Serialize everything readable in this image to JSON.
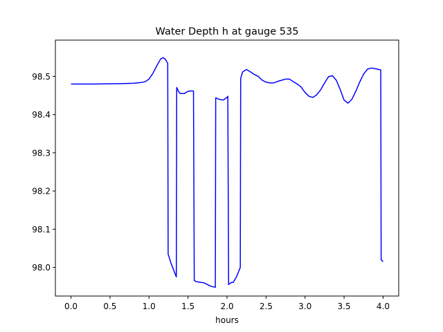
{
  "chart_data": {
    "type": "line",
    "title": "Water Depth h at gauge 535",
    "xlabel": "hours",
    "ylabel": "",
    "xlim": [
      -0.2,
      4.2
    ],
    "ylim": [
      97.925,
      98.595
    ],
    "xticks": [
      0.0,
      0.5,
      1.0,
      1.5,
      2.0,
      2.5,
      3.0,
      3.5,
      4.0
    ],
    "xtick_labels": [
      "0.0",
      "0.5",
      "1.0",
      "1.5",
      "2.0",
      "2.5",
      "3.0",
      "3.5",
      "4.0"
    ],
    "yticks": [
      98.0,
      98.1,
      98.2,
      98.3,
      98.4,
      98.5
    ],
    "ytick_labels": [
      "98.0",
      "98.1",
      "98.2",
      "98.3",
      "98.4",
      "98.5"
    ],
    "grid": false,
    "colors": {
      "line": "#0000ff",
      "axes": "#000000",
      "background": "#ffffff"
    },
    "series": [
      {
        "color": "#0000ff",
        "x": [
          0.0,
          0.3,
          0.6,
          0.8,
          0.9,
          0.95,
          1.0,
          1.05,
          1.1,
          1.15,
          1.18,
          1.21,
          1.24,
          1.245,
          1.28,
          1.35,
          1.355,
          1.38,
          1.4,
          1.45,
          1.5,
          1.54,
          1.56,
          1.57,
          1.58,
          1.6,
          1.65,
          1.7,
          1.75,
          1.8,
          1.85,
          1.855,
          1.9,
          1.95,
          2.0,
          2.01,
          2.02,
          2.05,
          2.08,
          2.12,
          2.15,
          2.17,
          2.175,
          2.2,
          2.25,
          2.3,
          2.35,
          2.4,
          2.45,
          2.5,
          2.55,
          2.6,
          2.65,
          2.7,
          2.75,
          2.8,
          2.85,
          2.9,
          2.95,
          3.0,
          3.05,
          3.1,
          3.15,
          3.2,
          3.25,
          3.3,
          3.35,
          3.4,
          3.45,
          3.5,
          3.55,
          3.6,
          3.65,
          3.7,
          3.75,
          3.8,
          3.85,
          3.9,
          3.95,
          3.97,
          3.975,
          4.0
        ],
        "y": [
          98.48,
          98.48,
          98.481,
          98.482,
          98.484,
          98.486,
          98.493,
          98.508,
          98.528,
          98.546,
          98.549,
          98.545,
          98.534,
          98.035,
          98.012,
          97.975,
          98.471,
          98.46,
          98.455,
          98.455,
          98.461,
          98.462,
          98.462,
          98.462,
          97.966,
          97.963,
          97.961,
          97.96,
          97.955,
          97.95,
          97.948,
          98.444,
          98.44,
          98.438,
          98.445,
          98.448,
          97.955,
          97.96,
          97.961,
          97.975,
          97.99,
          98.0,
          98.495,
          98.512,
          98.518,
          98.512,
          98.505,
          98.5,
          98.49,
          98.485,
          98.483,
          98.483,
          98.487,
          98.49,
          98.493,
          98.493,
          98.486,
          98.48,
          98.472,
          98.458,
          98.448,
          98.445,
          98.452,
          98.465,
          98.483,
          98.499,
          98.502,
          98.49,
          98.466,
          98.438,
          98.43,
          98.44,
          98.461,
          98.485,
          98.506,
          98.519,
          98.522,
          98.52,
          98.518,
          98.517,
          98.02,
          98.015
        ]
      }
    ]
  }
}
